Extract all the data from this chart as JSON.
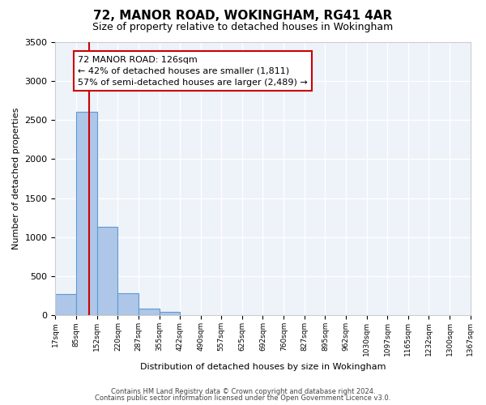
{
  "title": "72, MANOR ROAD, WOKINGHAM, RG41 4AR",
  "subtitle": "Size of property relative to detached houses in Wokingham",
  "xlabel": "Distribution of detached houses by size in Wokingham",
  "ylabel": "Number of detached properties",
  "bar_values": [
    270,
    2600,
    1130,
    280,
    90,
    50,
    0,
    0,
    0,
    0,
    0,
    0,
    0,
    0,
    0,
    0,
    0,
    0,
    0,
    0
  ],
  "bin_edges": [
    17,
    85,
    152,
    220,
    287,
    355,
    422,
    490,
    557,
    625,
    692,
    760,
    827,
    895,
    962,
    1030,
    1097,
    1165,
    1232,
    1300,
    1367
  ],
  "tick_labels": [
    "17sqm",
    "85sqm",
    "152sqm",
    "220sqm",
    "287sqm",
    "355sqm",
    "422sqm",
    "490sqm",
    "557sqm",
    "625sqm",
    "692sqm",
    "760sqm",
    "827sqm",
    "895sqm",
    "962sqm",
    "1030sqm",
    "1097sqm",
    "1165sqm",
    "1232sqm",
    "1300sqm",
    "1367sqm"
  ],
  "bar_color": "#aec6e8",
  "bar_edge_color": "#5b9bd5",
  "vline_x": 126,
  "vline_color": "#cc0000",
  "ylim": [
    0,
    3500
  ],
  "yticks": [
    0,
    500,
    1000,
    1500,
    2000,
    2500,
    3000,
    3500
  ],
  "annotation_text": "72 MANOR ROAD: 126sqm\n← 42% of detached houses are smaller (1,811)\n57% of semi-detached houses are larger (2,489) →",
  "annotation_box_color": "#ffffff",
  "annotation_box_edge": "#cc0000",
  "footer_line1": "Contains HM Land Registry data © Crown copyright and database right 2024.",
  "footer_line2": "Contains public sector information licensed under the Open Government Licence v3.0.",
  "background_color": "#eef2f9",
  "grid_color": "#ffffff",
  "title_fontsize": 11,
  "subtitle_fontsize": 9
}
